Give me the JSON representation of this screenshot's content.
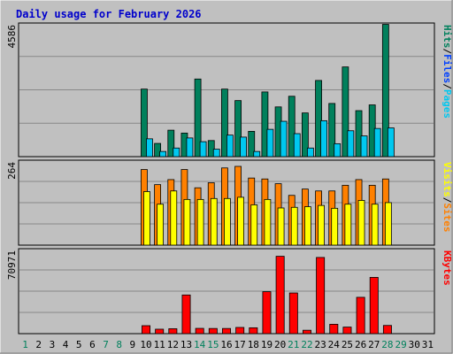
{
  "title": "Daily usage for February 2026",
  "colors": {
    "background": "#c0c0c0",
    "plot": "#c0c0c0",
    "grid": "#888888",
    "hits": "#00805c",
    "files": "#0040ff",
    "pages": "#00c8f0",
    "visits": "#ff8000",
    "sites": "#ffff00",
    "kbytes": "#ff0000",
    "title": "#0000cc",
    "weekend_day": "#00805c"
  },
  "chart_data": [
    {
      "type": "bar",
      "name": "hits-files-pages",
      "max_label": "4586",
      "ylim": [
        0,
        4586
      ],
      "side_label": [
        "Pages",
        "/",
        "Files",
        "/",
        "Hits"
      ],
      "categories": [
        "1",
        "2",
        "3",
        "4",
        "5",
        "6",
        "7",
        "8",
        "9",
        "10",
        "11",
        "12",
        "13",
        "14",
        "15",
        "16",
        "17",
        "18",
        "19",
        "20",
        "21",
        "22",
        "23",
        "24",
        "25",
        "26",
        "27",
        "28",
        "29",
        "30",
        "31"
      ],
      "series": [
        {
          "name": "Hits",
          "values": [
            null,
            null,
            null,
            null,
            null,
            null,
            null,
            null,
            null,
            2350,
            460,
            920,
            820,
            2700,
            560,
            2350,
            1950,
            880,
            2250,
            1730,
            2100,
            1520,
            2650,
            1850,
            3120,
            1600,
            1800,
            4600,
            null,
            null,
            null
          ]
        },
        {
          "name": "Files",
          "values": [
            null,
            null,
            null,
            null,
            null,
            null,
            null,
            null,
            null,
            null,
            null,
            null,
            null,
            null,
            null,
            null,
            null,
            null,
            null,
            null,
            null,
            null,
            null,
            null,
            null,
            null,
            null,
            null,
            null,
            null,
            null
          ]
        },
        {
          "name": "Pages",
          "values": [
            null,
            null,
            null,
            null,
            null,
            null,
            null,
            null,
            null,
            620,
            180,
            300,
            650,
            520,
            260,
            750,
            680,
            180,
            950,
            1230,
            800,
            300,
            1250,
            450,
            900,
            720,
            980,
            1000,
            null,
            null,
            null
          ]
        }
      ]
    },
    {
      "type": "bar",
      "name": "visits-sites",
      "max_label": "264",
      "ylim": [
        0,
        264
      ],
      "side_label": [
        "Sites",
        "/",
        "Visits"
      ],
      "categories": [
        "1",
        "2",
        "3",
        "4",
        "5",
        "6",
        "7",
        "8",
        "9",
        "10",
        "11",
        "12",
        "13",
        "14",
        "15",
        "16",
        "17",
        "18",
        "19",
        "20",
        "21",
        "22",
        "23",
        "24",
        "25",
        "26",
        "27",
        "28",
        "29",
        "30",
        "31"
      ],
      "series": [
        {
          "name": "Visits",
          "values": [
            null,
            null,
            null,
            null,
            null,
            null,
            null,
            null,
            null,
            240,
            192,
            208,
            240,
            182,
            198,
            245,
            250,
            213,
            210,
            195,
            158,
            178,
            172,
            172,
            190,
            208,
            190,
            210,
            null,
            null,
            null
          ]
        },
        {
          "name": "Sites",
          "values": [
            null,
            null,
            null,
            null,
            null,
            null,
            null,
            null,
            null,
            170,
            130,
            172,
            145,
            145,
            148,
            148,
            152,
            128,
            145,
            118,
            120,
            122,
            126,
            117,
            130,
            142,
            130,
            135,
            null,
            null,
            null
          ]
        }
      ]
    },
    {
      "type": "bar",
      "name": "kbytes",
      "max_label": "70971",
      "ylim": [
        0,
        70971
      ],
      "side_label": [
        "KBytes"
      ],
      "categories": [
        "1",
        "2",
        "3",
        "4",
        "5",
        "6",
        "7",
        "8",
        "9",
        "10",
        "11",
        "12",
        "13",
        "14",
        "15",
        "16",
        "17",
        "18",
        "19",
        "20",
        "21",
        "22",
        "23",
        "24",
        "25",
        "26",
        "27",
        "28",
        "29",
        "30",
        "31"
      ],
      "series": [
        {
          "name": "KBytes",
          "values": [
            null,
            null,
            null,
            null,
            null,
            null,
            null,
            null,
            null,
            6800,
            3800,
            4200,
            33000,
            4500,
            4400,
            4400,
            5300,
            5000,
            35800,
            66000,
            34700,
            2900,
            65000,
            8000,
            5600,
            31000,
            48000,
            7000,
            null,
            null,
            null
          ]
        }
      ]
    }
  ],
  "day_labels": [
    "1",
    "2",
    "3",
    "4",
    "5",
    "6",
    "7",
    "8",
    "9",
    "10",
    "11",
    "12",
    "13",
    "14",
    "15",
    "16",
    "17",
    "18",
    "19",
    "20",
    "21",
    "22",
    "23",
    "24",
    "25",
    "26",
    "27",
    "28",
    "29",
    "30",
    "31"
  ],
  "weekend_days": [
    "1",
    "7",
    "8",
    "14",
    "15",
    "21",
    "22",
    "28",
    "29"
  ]
}
